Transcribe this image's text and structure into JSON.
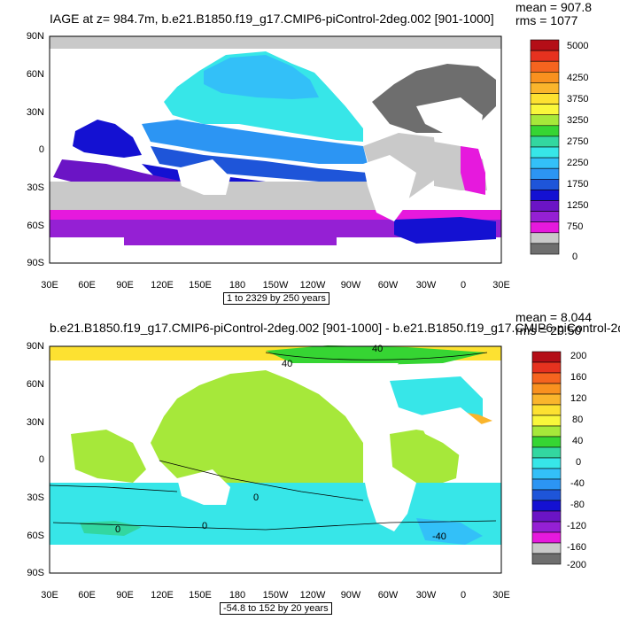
{
  "panels": [
    {
      "title": "IAGE at z= 984.7m, b.e21.B1850.f19_g17.CMIP6-piControl-2deg.002 [901-1000]",
      "stats": {
        "mean": "mean = 907.8",
        "rms": "rms = 1077"
      },
      "lat_labels": [
        "90N",
        "60N",
        "30N",
        "0",
        "30S",
        "60S",
        "90S"
      ],
      "lon_labels": [
        "30E",
        "60E",
        "90E",
        "120E",
        "150E",
        "180",
        "150W",
        "120W",
        "90W",
        "60W",
        "30W",
        "0",
        "30E"
      ],
      "colorbar": {
        "labels": [
          "5000",
          "4250",
          "3750",
          "3250",
          "2750",
          "2250",
          "1750",
          "1250",
          "750",
          "0"
        ],
        "colors": [
          "#b40e17",
          "#e6321f",
          "#f5641f",
          "#f9911f",
          "#fab52c",
          "#fde131",
          "#f9f73b",
          "#a6e83a",
          "#36d533",
          "#33d7a0",
          "#37e6e8",
          "#33c0f8",
          "#2c95f3",
          "#1e55d9",
          "#1411d2",
          "#6b14c5",
          "#9520d4",
          "#e619dd",
          "#c9c9c9",
          "#6e6e6e"
        ]
      },
      "range_text": "1 to 2329 by 250 years"
    },
    {
      "title": "b.e21.B1850.f19_g17.CMIP6-piControl-2deg.002 [901-1000] - b.e21.B1850.f19_g17.CMIP6-piControl-2d",
      "stats": {
        "mean": "mean = 8.044",
        "rms": "rms = 20.50"
      },
      "lat_labels": [
        "90N",
        "60N",
        "30N",
        "0",
        "30S",
        "60S",
        "90S"
      ],
      "lon_labels": [
        "30E",
        "60E",
        "90E",
        "120E",
        "150E",
        "180",
        "150W",
        "120W",
        "90W",
        "60W",
        "30W",
        "0",
        "30E"
      ],
      "colorbar": {
        "labels": [
          "200",
          "160",
          "120",
          "80",
          "40",
          "0",
          "-40",
          "-80",
          "-120",
          "-160",
          "-200"
        ],
        "colors": [
          "#b40e17",
          "#e6321f",
          "#f5641f",
          "#f9911f",
          "#fab52c",
          "#fde131",
          "#f9f73b",
          "#a6e83a",
          "#36d533",
          "#33d7a0",
          "#37e6e8",
          "#33c0f8",
          "#2c95f3",
          "#1e55d9",
          "#1411d2",
          "#6b14c5",
          "#9520d4",
          "#e619dd",
          "#c9c9c9",
          "#6e6e6e"
        ]
      },
      "contour_labels": [
        "40",
        "40",
        "0",
        "0",
        "0",
        "-40"
      ],
      "range_text": "-54.8 to 152 by 20 years"
    }
  ]
}
